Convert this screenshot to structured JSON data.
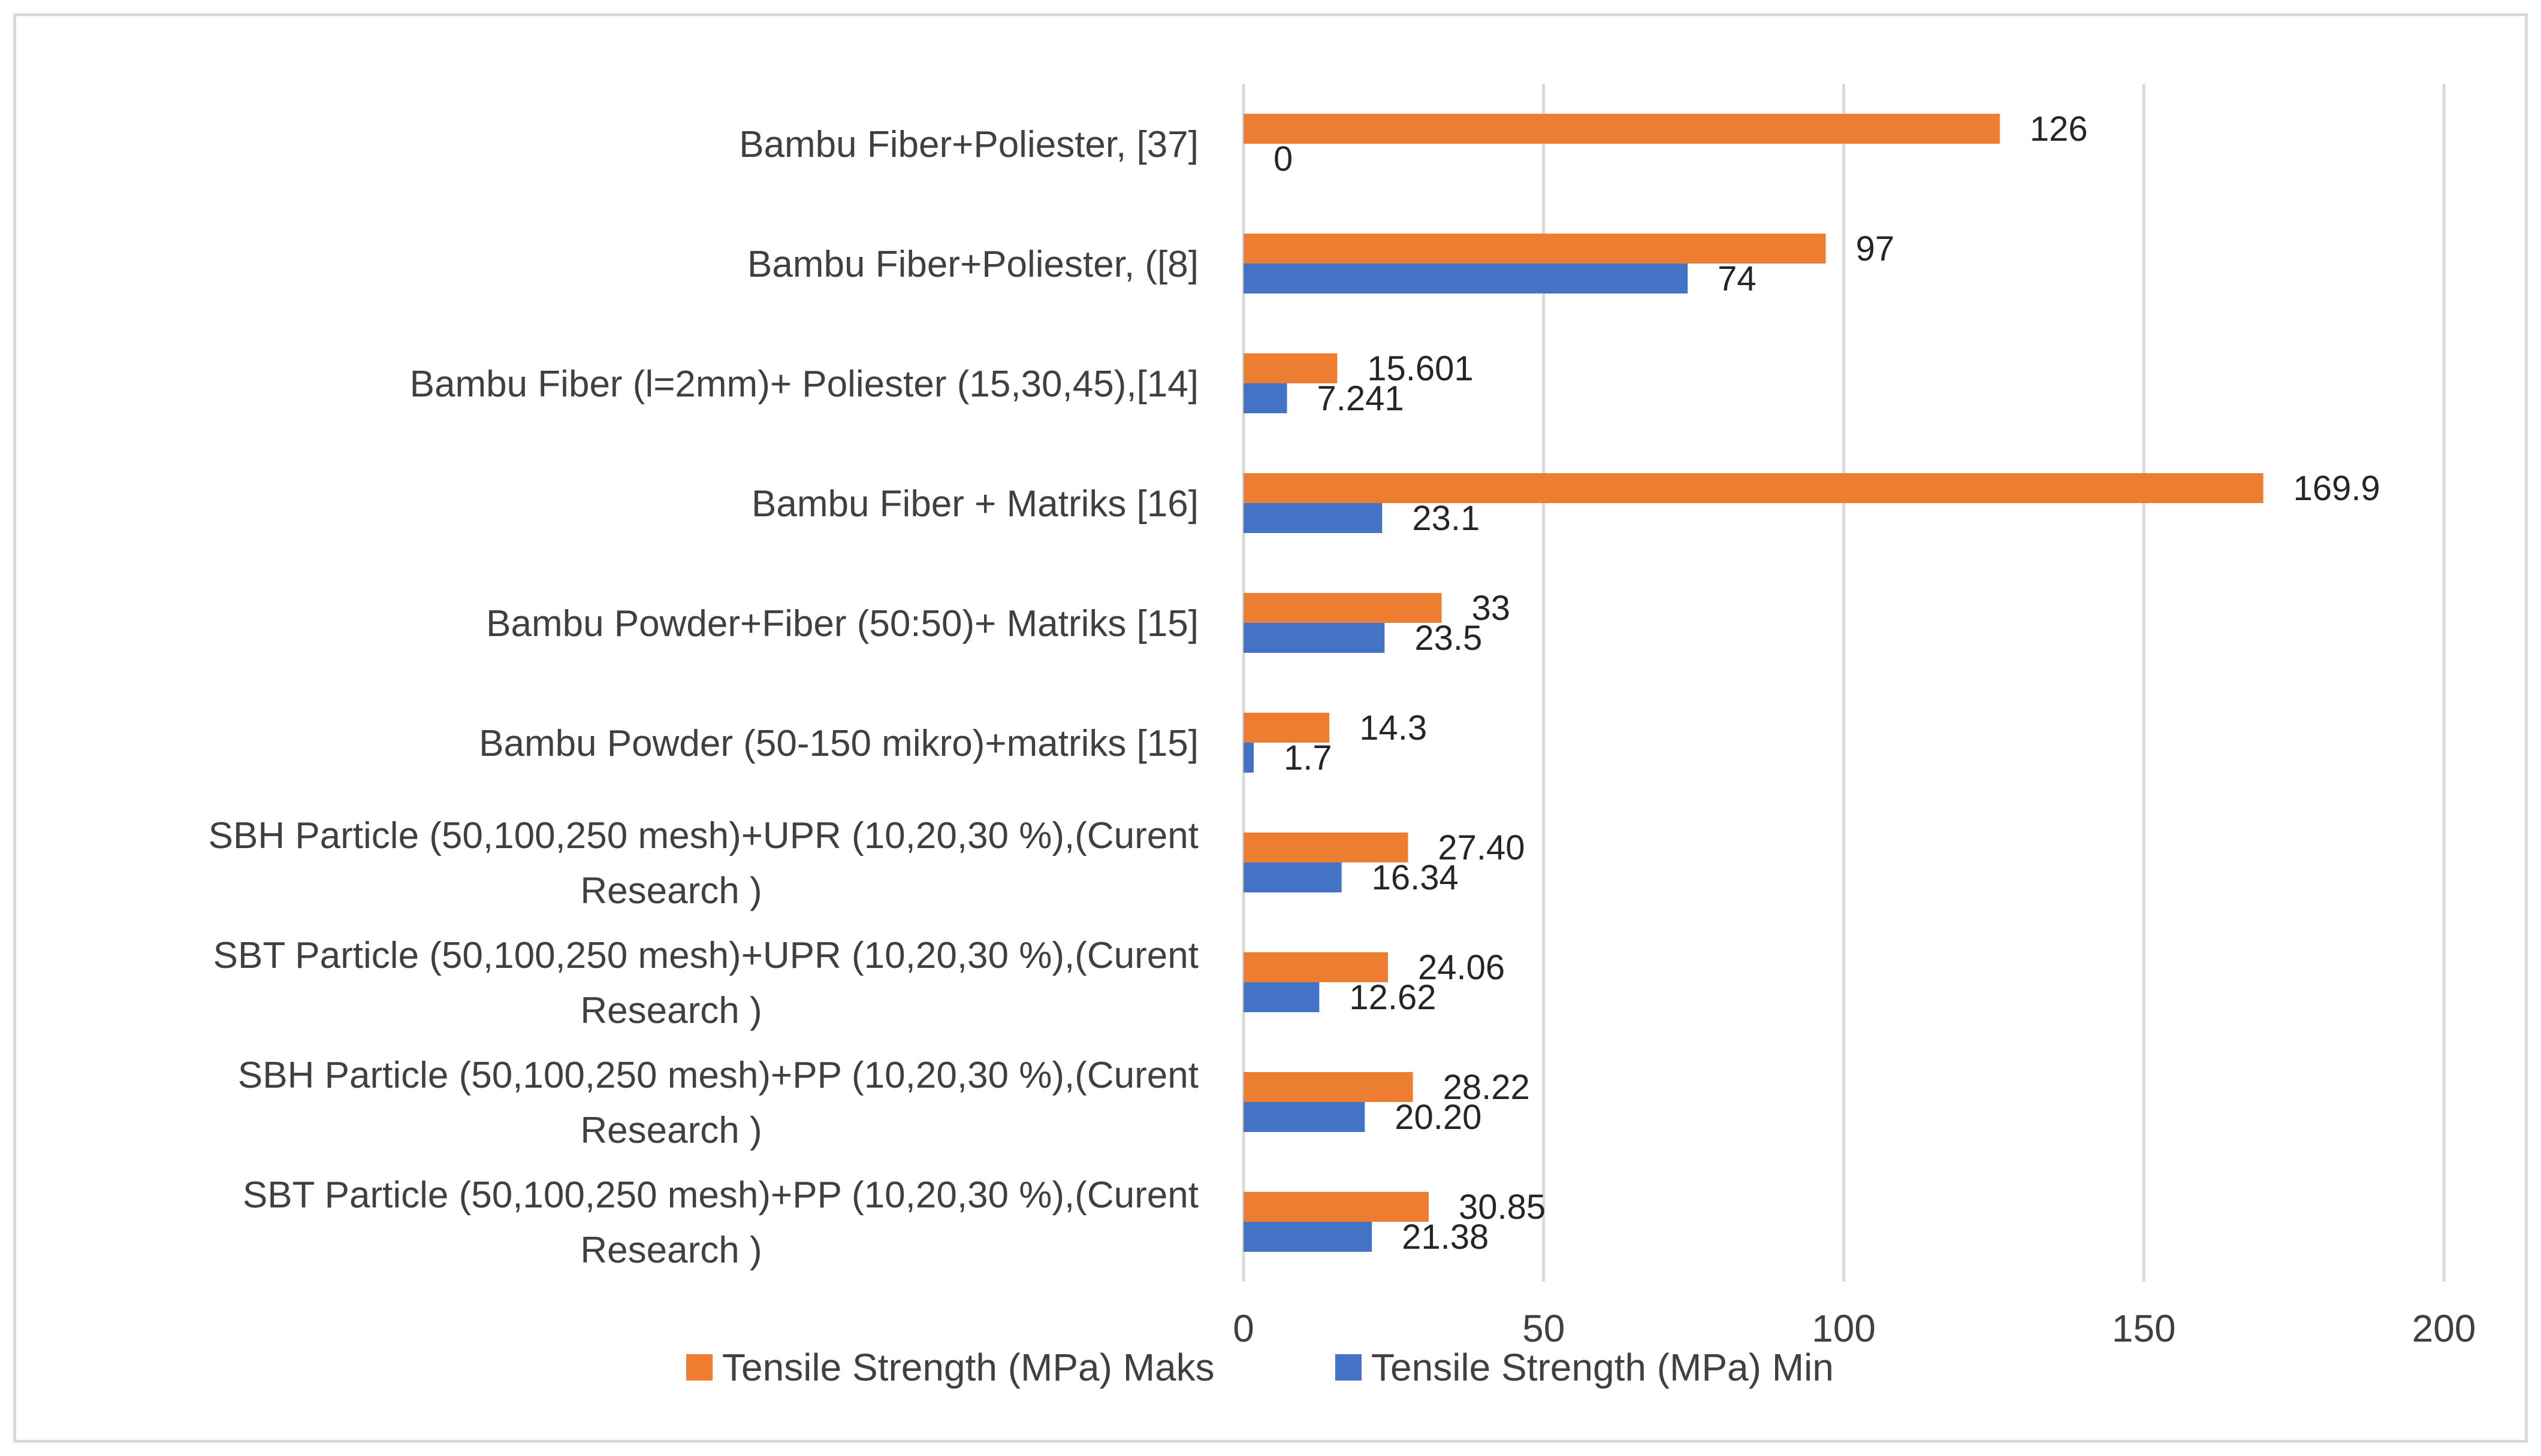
{
  "chart_data": {
    "type": "bar",
    "orientation": "horizontal",
    "title": "",
    "xlabel": "",
    "ylabel": "",
    "xlim": [
      0,
      200
    ],
    "x_ticks": [
      0,
      50,
      100,
      150,
      200
    ],
    "grid": true,
    "legend_position": "bottom",
    "categories": [
      "Bambu Fiber+Poliester, [37]",
      "Bambu Fiber+Poliester, ([8]",
      "Bambu Fiber (l=2mm)+ Poliester (15,30,45),[14]",
      "Bambu Fiber + Matriks [16]",
      "Bambu Powder+Fiber (50:50)+ Matriks [15]",
      "Bambu Powder (50-150 mikro)+matriks [15]",
      "SBH Particle (50,100,250 mesh)+UPR (10,20,30 %),(Curent Research )",
      "SBT Particle (50,100,250 mesh)+UPR (10,20,30 %),(Curent Research )",
      "SBH Particle (50,100,250 mesh)+PP (10,20,30 %),(Curent Research )",
      "SBT Particle (50,100,250 mesh)+PP (10,20,30 %),(Curent Research )"
    ],
    "category_lines": [
      [
        "Bambu Fiber+Poliester, [37]"
      ],
      [
        "Bambu Fiber+Poliester, ([8]"
      ],
      [
        "Bambu Fiber (l=2mm)+ Poliester (15,30,45),[14]"
      ],
      [
        "Bambu Fiber + Matriks [16]"
      ],
      [
        "Bambu Powder+Fiber (50:50)+ Matriks [15]"
      ],
      [
        "Bambu Powder (50-150 mikro)+matriks [15]"
      ],
      [
        "SBH Particle (50,100,250 mesh)+UPR (10,20,30 %),(Curent",
        "Research )"
      ],
      [
        "SBT Particle (50,100,250 mesh)+UPR (10,20,30 %),(Curent",
        "Research )"
      ],
      [
        "SBH Particle (50,100,250 mesh)+PP (10,20,30 %),(Curent",
        "Research )"
      ],
      [
        "SBT Particle (50,100,250 mesh)+PP (10,20,30 %),(Curent",
        "Research )"
      ]
    ],
    "series": [
      {
        "name": "Tensile Strength (MPa) Maks",
        "color": "#ed7d31",
        "values": [
          126,
          97,
          15.601,
          169.9,
          33,
          14.3,
          27.4,
          24.06,
          28.22,
          30.85
        ],
        "labels": [
          "126",
          "97",
          "15.601",
          "169.9",
          "33",
          "14.3",
          "27.40",
          "24.06",
          "28.22",
          "30.85"
        ]
      },
      {
        "name": "Tensile Strength (MPa) Min",
        "color": "#4472c4",
        "values": [
          0,
          74,
          7.241,
          23.1,
          23.5,
          1.7,
          16.34,
          12.62,
          20.2,
          21.38
        ],
        "labels": [
          "0",
          "74",
          "7.241",
          "23.1",
          "23.5",
          "1.7",
          "16.34",
          "12.62",
          "20.20",
          "21.38"
        ]
      }
    ]
  }
}
